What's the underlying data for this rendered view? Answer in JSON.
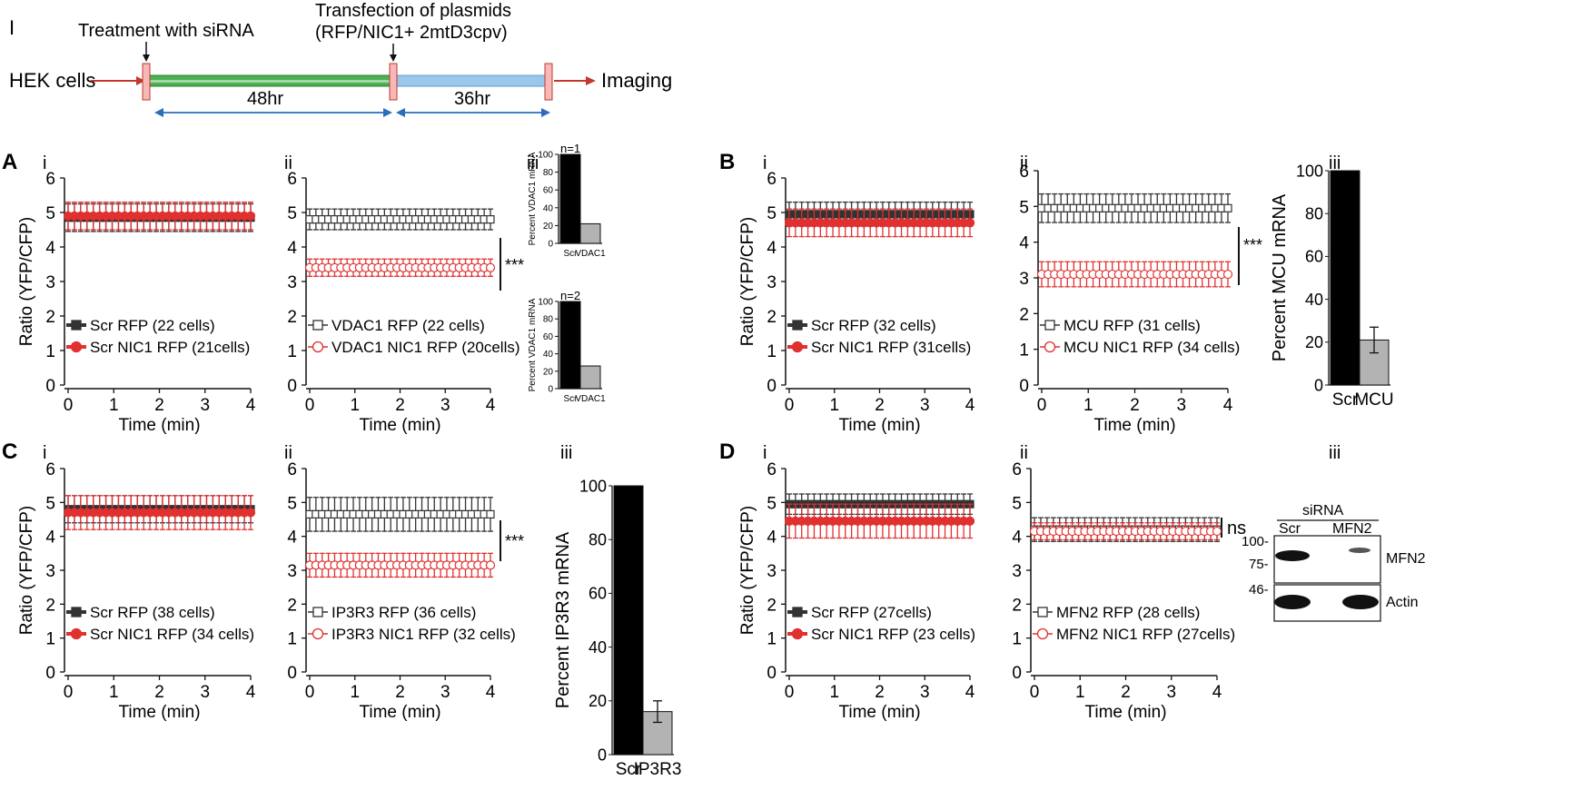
{
  "timeline": {
    "panel_label": "I",
    "start_label": "HEK cells",
    "step1_label": "Treatment with siRNA",
    "step2_label_line1": "Transfection of plasmids",
    "step2_label_line2": "(RFP/NIC1+ 2mtD3cpv)",
    "end_label": "Imaging",
    "interval1": "48hr",
    "interval2": "36hr",
    "colors": {
      "arrow": "#c0392b",
      "bar1": "#3a8a3a",
      "bar2": "#6fa8dc",
      "span": "#2a6ebb"
    }
  },
  "labels": {
    "A": "A",
    "B": "B",
    "C": "C",
    "D": "D",
    "i": "i",
    "ii": "ii",
    "iii": "iii",
    "stars": "***",
    "ns": "ns",
    "wb_title": "siRNA",
    "wb_lane1": "Scr",
    "wb_lane2": "MFN2",
    "wb_mw1": "100-",
    "wb_mw2": "75-",
    "wb_mw3": "46-",
    "wb_band1": "MFN2",
    "wb_band2": "Actin"
  },
  "chart_data": [
    {
      "id": "A-i",
      "type": "line",
      "ylabel": "Ratio (YFP/CFP)",
      "xlabel": "Time (min)",
      "ylim": [
        0,
        6
      ],
      "xlim": [
        0,
        4
      ],
      "series": [
        {
          "name": "Scr RFP (22 cells)",
          "marker": "filled-square",
          "color": "#333333",
          "mean": 4.85,
          "err": 0.4
        },
        {
          "name": "Scr NIC1 RFP (21cells)",
          "marker": "filled-circle",
          "color": "#e03030",
          "mean": 4.9,
          "err": 0.4
        }
      ]
    },
    {
      "id": "A-ii",
      "type": "line",
      "ylabel": "",
      "xlabel": "Time (min)",
      "ylim": [
        0,
        6
      ],
      "xlim": [
        0,
        4
      ],
      "series": [
        {
          "name": "VDAC1 RFP (22 cells)",
          "marker": "open-square",
          "color": "#333333",
          "mean": 4.8,
          "err": 0.3
        },
        {
          "name": "VDAC1 NIC1 RFP (20cells)",
          "marker": "open-circle",
          "color": "#e03030",
          "mean": 3.4,
          "err": 0.25
        }
      ]
    },
    {
      "id": "B-i",
      "type": "line",
      "ylabel": "Ratio (YFP/CFP)",
      "xlabel": "Time (min)",
      "ylim": [
        0,
        6
      ],
      "xlim": [
        0,
        4
      ],
      "series": [
        {
          "name": "Scr RFP (32 cells)",
          "marker": "filled-square",
          "color": "#333333",
          "mean": 4.95,
          "err": 0.35
        },
        {
          "name": "Scr NIC1 RFP (31cells)",
          "marker": "filled-circle",
          "color": "#e03030",
          "mean": 4.7,
          "err": 0.4
        }
      ]
    },
    {
      "id": "B-ii",
      "type": "line",
      "ylabel": "",
      "xlabel": "Time (min)",
      "ylim": [
        0,
        6
      ],
      "xlim": [
        0,
        4
      ],
      "series": [
        {
          "name": "MCU RFP (31 cells)",
          "marker": "open-square",
          "color": "#333333",
          "mean": 4.95,
          "err": 0.4
        },
        {
          "name": "MCU NIC1 RFP (34 cells)",
          "marker": "open-circle",
          "color": "#e03030",
          "mean": 3.1,
          "err": 0.35
        }
      ]
    },
    {
      "id": "C-i",
      "type": "line",
      "ylabel": "Ratio (YFP/CFP)",
      "xlabel": "Time (min)",
      "ylim": [
        0,
        6
      ],
      "xlim": [
        0,
        4
      ],
      "series": [
        {
          "name": "Scr RFP (38 cells)",
          "marker": "filled-square",
          "color": "#333333",
          "mean": 4.8,
          "err": 0.4
        },
        {
          "name": "Scr NIC1 RFP (34 cells)",
          "marker": "filled-circle",
          "color": "#e03030",
          "mean": 4.7,
          "err": 0.5
        }
      ]
    },
    {
      "id": "C-ii",
      "type": "line",
      "ylabel": "",
      "xlabel": "Time (min)",
      "ylim": [
        0,
        6
      ],
      "xlim": [
        0,
        4
      ],
      "series": [
        {
          "name": "IP3R3 RFP (36 cells)",
          "marker": "open-square",
          "color": "#333333",
          "mean": 4.65,
          "err": 0.5
        },
        {
          "name": "IP3R3 NIC1 RFP (32 cells)",
          "marker": "open-circle",
          "color": "#e03030",
          "mean": 3.15,
          "err": 0.35
        }
      ]
    },
    {
      "id": "D-i",
      "type": "line",
      "ylabel": "Ratio (YFP/CFP)",
      "xlabel": "Time (min)",
      "ylim": [
        0,
        6
      ],
      "xlim": [
        0,
        4
      ],
      "series": [
        {
          "name": "Scr RFP (27cells)",
          "marker": "filled-square",
          "color": "#333333",
          "mean": 4.95,
          "err": 0.3
        },
        {
          "name": "Scr NIC1 RFP (23 cells)",
          "marker": "filled-circle",
          "color": "#e03030",
          "mean": 4.45,
          "err": 0.5
        }
      ]
    },
    {
      "id": "D-ii",
      "type": "line",
      "ylabel": "",
      "xlabel": "Time (min)",
      "ylim": [
        0,
        6
      ],
      "xlim": [
        0,
        4
      ],
      "series": [
        {
          "name": "MFN2 RFP (28 cells)",
          "marker": "open-square",
          "color": "#333333",
          "mean": 4.2,
          "err": 0.35
        },
        {
          "name": "MFN2 NIC1 RFP (27cells)",
          "marker": "open-circle",
          "color": "#e03030",
          "mean": 4.15,
          "err": 0.25
        }
      ]
    },
    {
      "id": "A-iii-top",
      "type": "bar",
      "note": "n=1",
      "ylabel": "Percent VDAC1 mRNA",
      "ylim": [
        0,
        100
      ],
      "categories": [
        "Scr",
        "VDAC1"
      ],
      "values": [
        100,
        22
      ],
      "colors": [
        "#000000",
        "#b3b3b3"
      ]
    },
    {
      "id": "A-iii-bottom",
      "type": "bar",
      "note": "n=2",
      "ylabel": "Percent VDAC1 mRNA",
      "ylim": [
        0,
        100
      ],
      "categories": [
        "Scr",
        "VDAC1"
      ],
      "values": [
        100,
        26
      ],
      "colors": [
        "#000000",
        "#b3b3b3"
      ]
    },
    {
      "id": "B-iii",
      "type": "bar",
      "ylabel": "Percent MCU mRNA",
      "ylim": [
        0,
        100
      ],
      "categories": [
        "Scr",
        "MCU"
      ],
      "values": [
        100,
        21
      ],
      "errors": [
        0,
        6
      ],
      "colors": [
        "#000000",
        "#b3b3b3"
      ]
    },
    {
      "id": "C-iii",
      "type": "bar",
      "ylabel": "Percent IP3R3 mRNA",
      "ylim": [
        0,
        100
      ],
      "categories": [
        "Scr",
        "IP3R3"
      ],
      "values": [
        100,
        16
      ],
      "errors": [
        0,
        4
      ],
      "colors": [
        "#000000",
        "#b3b3b3"
      ]
    }
  ]
}
